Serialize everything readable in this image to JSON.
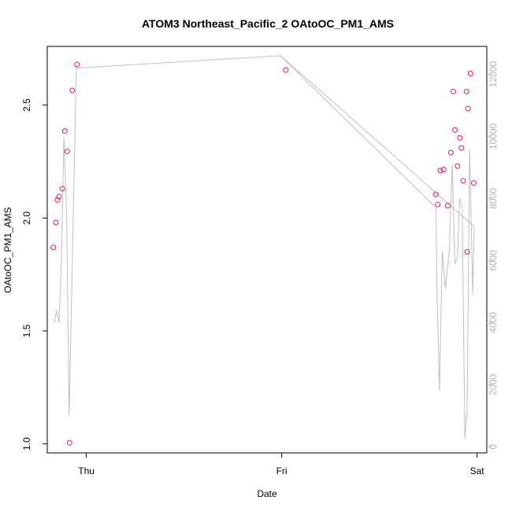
{
  "colors": {
    "points": "#e6147a",
    "line": "#bfbfbf",
    "axis": "#000000",
    "right_axis": "#b3b3b3"
  },
  "chart_data": {
    "type": "scatter",
    "title": "ATOM3 Northeast_Pacific_2 OAtoOC_PM1_AMS",
    "xlabel": "Date",
    "ylabel": "OAtoOC_PM1_AMS",
    "x_ticks": [
      "Thu",
      "Fri",
      "Sat"
    ],
    "x_ticks_pos": [
      0,
      1,
      2
    ],
    "xlim": [
      -0.2,
      2.05
    ],
    "ylim": [
      0.96,
      2.76
    ],
    "y_ticks": [
      1.0,
      1.5,
      2.0,
      2.5
    ],
    "y_right_lim": [
      -200,
      12900
    ],
    "y_right_ticks": [
      0,
      2000,
      4000,
      6000,
      8000,
      10000,
      12000
    ],
    "series": [
      {
        "type": "scatter",
        "axis": "left",
        "points": [
          [
            -0.169,
            1.87
          ],
          [
            -0.156,
            1.98
          ],
          [
            -0.148,
            2.08
          ],
          [
            -0.14,
            2.095
          ],
          [
            -0.123,
            2.13
          ],
          [
            -0.11,
            2.385
          ],
          [
            -0.098,
            2.295
          ],
          [
            -0.086,
            1.005
          ],
          [
            -0.072,
            2.565
          ],
          [
            -0.048,
            2.68
          ],
          [
            1.021,
            2.655
          ],
          [
            1.789,
            2.105
          ],
          [
            1.799,
            2.06
          ],
          [
            1.812,
            2.21
          ],
          [
            1.829,
            2.215
          ],
          [
            1.85,
            2.055
          ],
          [
            1.866,
            2.29
          ],
          [
            1.879,
            2.56
          ],
          [
            1.887,
            2.39
          ],
          [
            1.9,
            2.23
          ],
          [
            1.912,
            2.355
          ],
          [
            1.92,
            2.31
          ],
          [
            1.929,
            2.165
          ],
          [
            1.946,
            2.56
          ],
          [
            1.954,
            2.485
          ],
          [
            1.967,
            2.64
          ],
          [
            1.983,
            2.155
          ],
          [
            1.95,
            1.85
          ]
        ]
      },
      {
        "type": "line",
        "axis": "right",
        "points": [
          [
            -0.164,
            4000
          ],
          [
            -0.152,
            4400
          ],
          [
            -0.14,
            4000
          ],
          [
            -0.128,
            5800
          ],
          [
            -0.115,
            10000
          ],
          [
            -0.101,
            7500
          ],
          [
            -0.088,
            1000
          ],
          [
            -0.073,
            5600
          ],
          [
            -0.051,
            12200
          ],
          [
            0.994,
            12600
          ],
          [
            1.79,
            7700
          ],
          [
            1.795,
            5000
          ],
          [
            1.808,
            1800
          ],
          [
            1.822,
            6300
          ],
          [
            1.838,
            5100
          ],
          [
            1.858,
            6300
          ],
          [
            1.873,
            9100
          ],
          [
            1.887,
            5900
          ],
          [
            1.9,
            6100
          ],
          [
            1.911,
            8000
          ],
          [
            1.924,
            7700
          ],
          [
            1.938,
            250
          ],
          [
            1.949,
            1200
          ],
          [
            1.962,
            9600
          ],
          [
            1.978,
            4900
          ],
          [
            1.985,
            7100
          ]
        ],
        "breaks_after_index": [
          8
        ]
      }
    ]
  }
}
